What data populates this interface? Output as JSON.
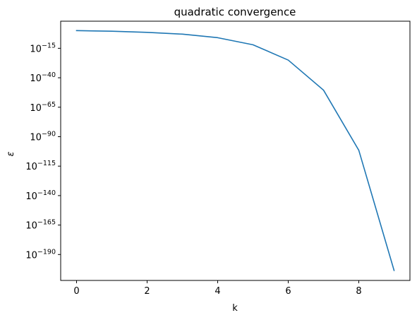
{
  "chart_data": {
    "type": "line",
    "title": "quadratic convergence",
    "xlabel": "k",
    "ylabel": "ε",
    "y_scale": "log",
    "xlim": [
      -0.45,
      9.45
    ],
    "ylim_exponent": [
      -212,
      8
    ],
    "x_ticks": [
      0,
      2,
      4,
      6,
      8
    ],
    "y_tick_base": "10",
    "y_tick_exponents": [
      -15,
      -40,
      -65,
      -90,
      -115,
      -140,
      -165,
      -190
    ],
    "y_tick_exponent_labels": [
      "−15",
      "−40",
      "−65",
      "−90",
      "−115",
      "−140",
      "−165",
      "−190"
    ],
    "grid": false,
    "legend": "none",
    "series": [
      {
        "color": "#1f77b4",
        "x": [
          0,
          1,
          2,
          3,
          4,
          5,
          6,
          7,
          8,
          9
        ],
        "y_exponent": [
          0,
          -0.5,
          -1.5,
          -3,
          -6,
          -12,
          -25,
          -50.5,
          -101.5,
          -203.5
        ]
      }
    ]
  }
}
